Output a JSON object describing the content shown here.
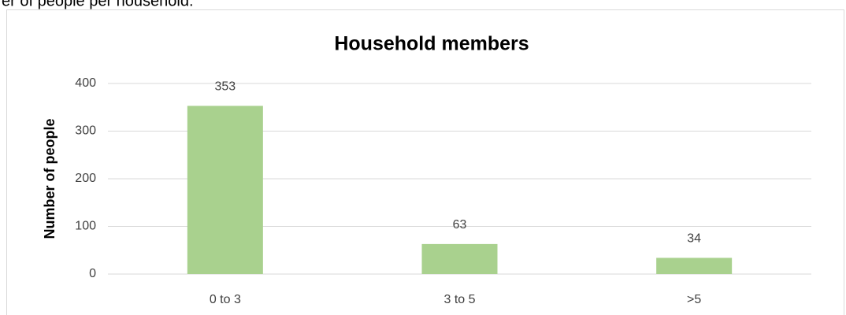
{
  "page_text": "er of people per household.",
  "chart_data": {
    "type": "bar",
    "title": "Household members",
    "y_axis_label": "Number of people",
    "categories": [
      "0 to 3",
      "3 to 5",
      ">5"
    ],
    "values": [
      353,
      63,
      34
    ],
    "color": "#a9d18e",
    "ylim": [
      0,
      400
    ],
    "yticks": [
      0,
      100,
      200,
      300,
      400
    ],
    "grid": true,
    "data_labels": true
  }
}
